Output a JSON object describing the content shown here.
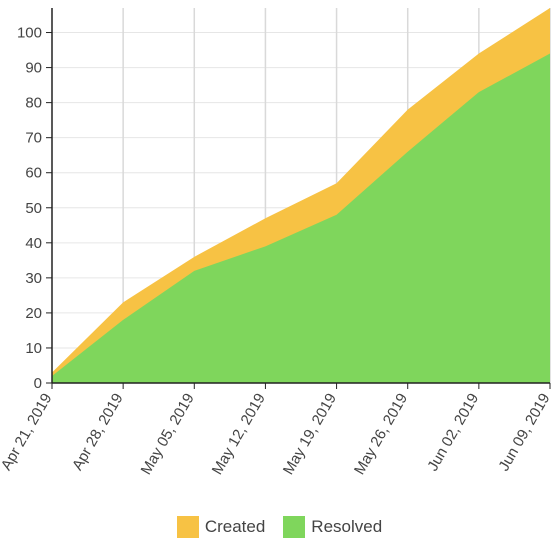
{
  "chart_data": {
    "type": "area",
    "title": "",
    "xlabel": "",
    "ylabel": "",
    "x": [
      "Apr 21, 2019",
      "Apr 28, 2019",
      "May 05, 2019",
      "May 12, 2019",
      "May 19, 2019",
      "May 26, 2019",
      "Jun 02, 2019",
      "Jun 09, 2019"
    ],
    "ylim": [
      0,
      107
    ],
    "yticks": [
      0,
      10,
      20,
      30,
      40,
      50,
      60,
      70,
      80,
      90,
      100
    ],
    "stacking": "overlay",
    "grid": true,
    "legend_position": "bottom-center",
    "series": [
      {
        "name": "Created",
        "color": "#f7c244",
        "values": [
          3,
          23,
          36,
          47,
          57,
          78,
          94,
          107
        ]
      },
      {
        "name": "Resolved",
        "color": "#7fd65c",
        "values": [
          2,
          18,
          32,
          39,
          48,
          66,
          83,
          94
        ]
      }
    ]
  }
}
